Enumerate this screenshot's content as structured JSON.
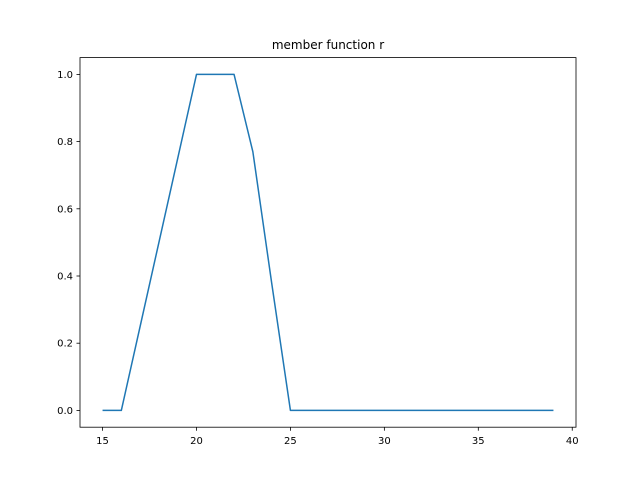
{
  "colors": {
    "line": "#1f77b4",
    "axes": "#000000",
    "background": "#ffffff"
  },
  "chart_data": {
    "type": "line",
    "title": "member function r",
    "xlabel": "",
    "ylabel": "",
    "xlim": [
      13.8,
      40.2
    ],
    "ylim": [
      -0.05,
      1.05
    ],
    "xticks": [
      15,
      20,
      25,
      30,
      35,
      40
    ],
    "yticks": [
      0.0,
      0.2,
      0.4,
      0.6,
      0.8,
      1.0
    ],
    "xtick_labels": [
      "15",
      "20",
      "25",
      "30",
      "35",
      "40"
    ],
    "ytick_labels": [
      "0.0",
      "0.2",
      "0.4",
      "0.6",
      "0.8",
      "1.0"
    ],
    "grid": false,
    "series": [
      {
        "name": "r",
        "x": [
          15,
          16,
          17,
          18,
          19,
          20,
          21,
          22,
          23,
          24,
          25,
          26,
          27,
          28,
          29,
          30,
          31,
          32,
          33,
          34,
          35,
          36,
          37,
          38,
          39
        ],
        "y": [
          0,
          0,
          0.25,
          0.5,
          0.75,
          1,
          1,
          1,
          0.77,
          0.38,
          0,
          0,
          0,
          0,
          0,
          0,
          0,
          0,
          0,
          0,
          0,
          0,
          0,
          0,
          0
        ]
      }
    ]
  }
}
